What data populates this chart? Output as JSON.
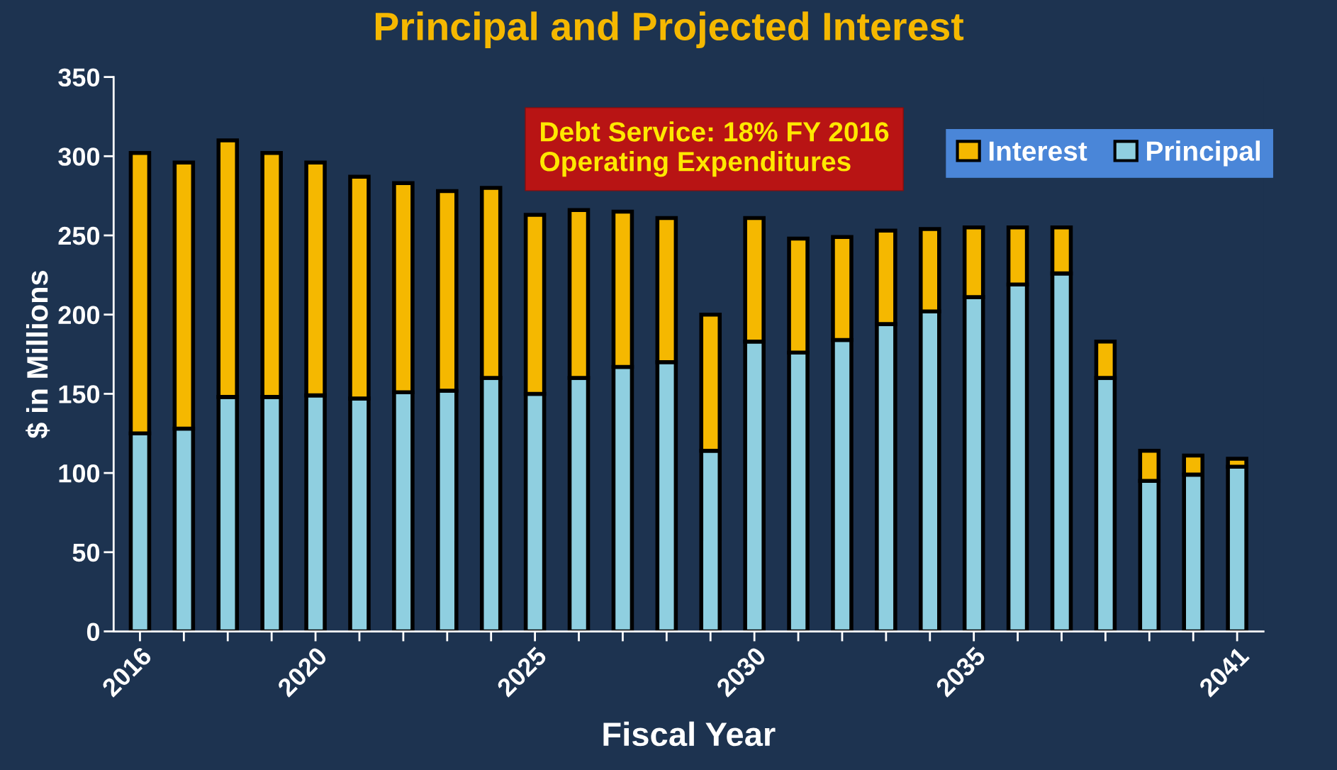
{
  "chart_data": {
    "type": "bar",
    "stacked": true,
    "title": "Principal and Projected Interest",
    "xlabel": "Fiscal Year",
    "ylabel": "$ in Millions",
    "categories": [
      "2016",
      null,
      null,
      null,
      "2020",
      null,
      null,
      null,
      null,
      "2025",
      null,
      null,
      null,
      null,
      "2030",
      null,
      null,
      null,
      null,
      "2035",
      null,
      null,
      null,
      null,
      null,
      "2041"
    ],
    "series": [
      {
        "name": "Principal",
        "color": "#8fcfe0",
        "values": [
          125,
          128,
          148,
          148,
          149,
          147,
          151,
          152,
          160,
          150,
          160,
          167,
          170,
          114,
          183,
          176,
          184,
          194,
          202,
          211,
          219,
          226,
          160,
          95,
          99,
          104
        ]
      },
      {
        "name": "Interest",
        "color": "#f5b800",
        "values": [
          177,
          168,
          162,
          154,
          147,
          140,
          132,
          126,
          120,
          113,
          106,
          98,
          91,
          86,
          78,
          72,
          65,
          59,
          52,
          44,
          36,
          29,
          23,
          19,
          12,
          5
        ]
      }
    ],
    "ylim": [
      0,
      350
    ],
    "yticks": [
      0,
      50,
      100,
      150,
      200,
      250,
      300,
      350
    ],
    "grid": false,
    "legend": "top right",
    "annotations": [
      "Debt Service: 18% FY 2016\nOperating Expenditures"
    ]
  }
}
